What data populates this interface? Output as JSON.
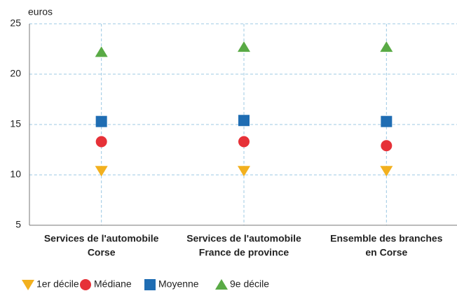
{
  "chart_data": {
    "type": "dot",
    "y_label": "euros",
    "categories": [
      [
        "Services de l'automobile",
        "Corse"
      ],
      [
        "Services de l'automobile",
        "France de province"
      ],
      [
        "Ensemble des branches",
        "en Corse"
      ]
    ],
    "series": [
      {
        "name": "1er décile",
        "color": "#f2b01e",
        "marker": "triangle-down",
        "values": [
          10.4,
          10.4,
          10.4
        ]
      },
      {
        "name": "Médiane",
        "color": "#e63138",
        "marker": "circle",
        "values": [
          13.3,
          13.3,
          12.9
        ]
      },
      {
        "name": "Moyenne",
        "color": "#1f6db3",
        "marker": "square",
        "values": [
          15.3,
          15.4,
          15.3
        ]
      },
      {
        "name": "9e décile",
        "color": "#59aa45",
        "marker": "triangle-up",
        "values": [
          22.2,
          22.7,
          22.7
        ]
      }
    ],
    "ylim": [
      5,
      25
    ],
    "yticks": [
      5,
      10,
      15,
      20,
      25
    ],
    "grid": true
  }
}
